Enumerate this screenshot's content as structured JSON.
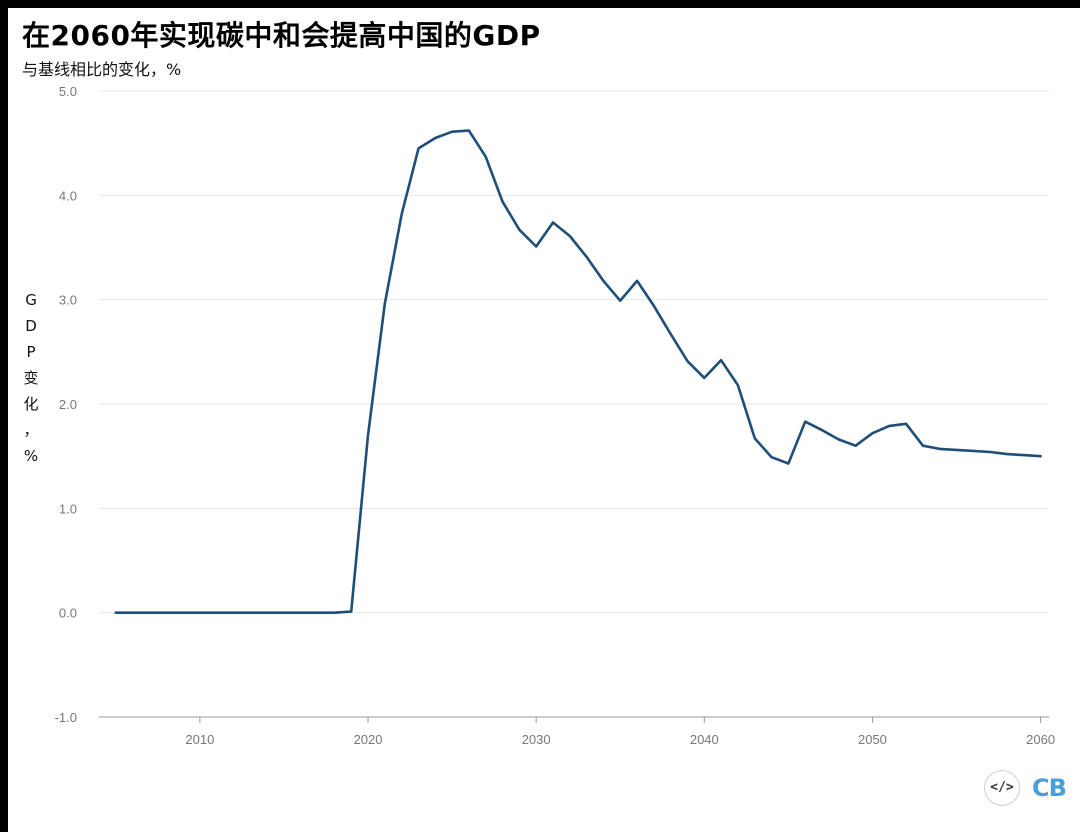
{
  "header": {
    "title": "在2060年实现碳中和会提高中国的GDP",
    "subtitle": "与基线相比的变化，%"
  },
  "chart_data": {
    "type": "line",
    "title": "在2060年实现碳中和会提高中国的GDP",
    "subtitle": "与基线相比的变化，%",
    "xlabel": "",
    "ylabel": [
      "G",
      "D",
      "P",
      "变",
      "化",
      "，",
      "%"
    ],
    "xlim": [
      2004,
      2060.5
    ],
    "ylim": [
      -1,
      5
    ],
    "x_ticks": [
      2010,
      2020,
      2030,
      2040,
      2050,
      2060
    ],
    "y_ticks": [
      5,
      4,
      3,
      2,
      1,
      0,
      -1
    ],
    "y_tick_labels": [
      "5.0",
      "4.0",
      "3.0",
      "2.0",
      "1.0",
      "0.0",
      "-1.0"
    ],
    "grid": "horizontal",
    "series": [
      {
        "color": "#1f4e79",
        "x": [
          2005,
          2006,
          2007,
          2008,
          2009,
          2010,
          2011,
          2012,
          2013,
          2014,
          2015,
          2016,
          2017,
          2018,
          2019,
          2020,
          2021,
          2022,
          2023,
          2024,
          2025,
          2026,
          2027,
          2028,
          2029,
          2030,
          2031,
          2032,
          2033,
          2034,
          2035,
          2036,
          2037,
          2038,
          2039,
          2040,
          2041,
          2042,
          2043,
          2044,
          2045,
          2046,
          2047,
          2048,
          2049,
          2050,
          2051,
          2052,
          2053,
          2054,
          2055,
          2056,
          2057,
          2058,
          2059,
          2060
        ],
        "values": [
          0.0,
          0.0,
          0.0,
          0.0,
          0.0,
          0.0,
          0.0,
          0.0,
          0.0,
          0.0,
          0.0,
          0.0,
          0.0,
          0.0,
          0.01,
          1.7,
          2.96,
          3.82,
          4.45,
          4.55,
          4.61,
          4.62,
          4.37,
          3.94,
          3.67,
          3.51,
          3.74,
          3.61,
          3.41,
          3.18,
          2.99,
          3.18,
          2.94,
          2.67,
          2.41,
          2.25,
          2.42,
          2.18,
          1.67,
          1.49,
          1.43,
          1.83,
          1.75,
          1.66,
          1.6,
          1.72,
          1.79,
          1.81,
          1.6,
          1.57,
          1.56,
          1.55,
          1.54,
          1.52,
          1.51,
          1.5
        ]
      }
    ]
  },
  "logo": {
    "code_symbol": "</>",
    "text": "CB"
  }
}
